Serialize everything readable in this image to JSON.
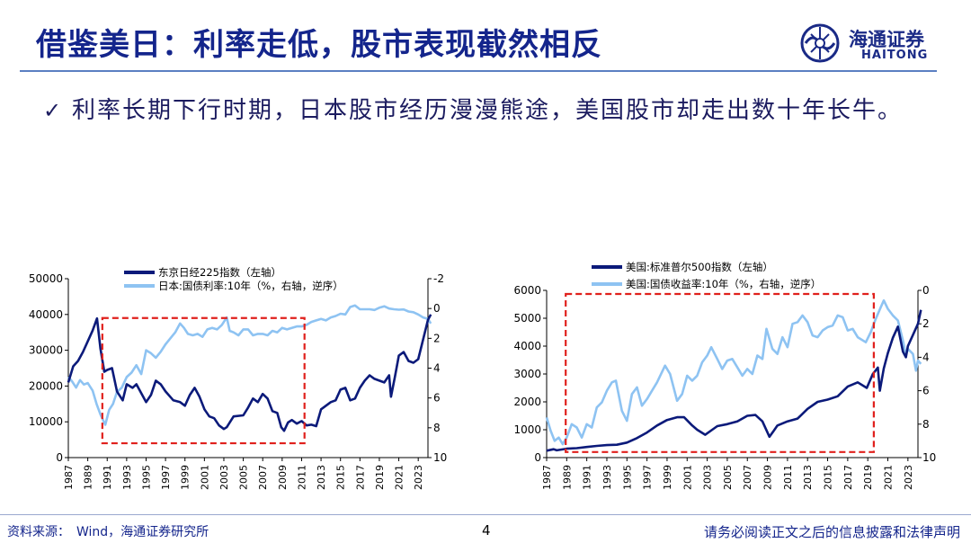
{
  "slide": {
    "title": "借鉴美日：利率走低，股市表现截然相反",
    "bullet": "利率长期下行时期，日本股市经历漫漫熊途，美国股市却走出数十年长牛。",
    "bullet_check": "✓",
    "logo_cn": "海通证券",
    "logo_en": "HAITONG",
    "source": "资料来源：　Wind，海通证券研究所",
    "page_number": "4",
    "disclaimer": "请务必阅读正文之后的信息披露和法律声明",
    "colors": {
      "title": "#14258c",
      "dark_series": "#0b1a7a",
      "light_series": "#8ec3f2",
      "highlight_box": "#e0201c"
    }
  },
  "chart_data": [
    {
      "id": "japan",
      "type": "line",
      "legend": [
        "东京日经225指数（左轴）",
        "日本:国债利率:10年（%，右轴，逆序）"
      ],
      "x_ticks": [
        "1987",
        "1989",
        "1991",
        "1993",
        "1995",
        "1997",
        "1999",
        "2001",
        "2003",
        "2005",
        "2007",
        "2009",
        "2011",
        "2013",
        "2015",
        "2017",
        "2019",
        "2021",
        "2023"
      ],
      "xlim": [
        1987,
        2024
      ],
      "left_axis": {
        "ticks": [
          "0",
          "10000",
          "20000",
          "30000",
          "40000",
          "50000"
        ],
        "range": [
          0,
          50000
        ]
      },
      "right_axis": {
        "ticks": [
          "-2",
          "0",
          "2",
          "4",
          "6",
          "8",
          "10"
        ],
        "range": [
          -2,
          10
        ],
        "inverted": true
      },
      "highlight_years": [
        1990.5,
        2011.3
      ],
      "series": [
        {
          "name": "东京日经225指数",
          "axis": "left",
          "x": [
            1987,
            1987.5,
            1988,
            1988.5,
            1989,
            1989.5,
            1989.95,
            1990.3,
            1990.7,
            1991,
            1991.5,
            1992,
            1992.6,
            1993,
            1993.6,
            1994,
            1995,
            1995.5,
            1996,
            1996.5,
            1997,
            1997.8,
            1998.5,
            1999,
            1999.5,
            2000,
            2000.5,
            2001,
            2001.5,
            2002,
            2002.5,
            2003,
            2003.3,
            2004,
            2005,
            2005.5,
            2006,
            2006.5,
            2007,
            2007.5,
            2008,
            2008.5,
            2008.9,
            2009.2,
            2009.6,
            2010,
            2010.5,
            2011,
            2011.5,
            2012,
            2012.5,
            2013,
            2013.5,
            2014,
            2014.5,
            2015,
            2015.5,
            2016,
            2016.5,
            2017,
            2017.5,
            2018,
            2018.5,
            2019,
            2019.5,
            2020,
            2020.2,
            2020.6,
            2021,
            2021.5,
            2022,
            2022.5,
            2023,
            2023.5,
            2024,
            2024.3
          ],
          "y": [
            21000,
            25500,
            27000,
            29500,
            32500,
            35500,
            38900,
            30500,
            24000,
            24500,
            25000,
            18500,
            16000,
            20500,
            19500,
            20500,
            15500,
            17500,
            21500,
            20500,
            18500,
            16000,
            15500,
            14500,
            17500,
            19500,
            17000,
            13500,
            11500,
            11000,
            9000,
            8000,
            8500,
            11500,
            11800,
            14000,
            16500,
            15500,
            17800,
            16500,
            13000,
            12500,
            8500,
            7500,
            9800,
            10500,
            9500,
            10200,
            9000,
            9200,
            8800,
            13500,
            14500,
            15500,
            16000,
            19000,
            19500,
            16000,
            16500,
            19500,
            21500,
            23000,
            22000,
            21500,
            21000,
            23000,
            17000,
            22500,
            28500,
            29500,
            27000,
            26500,
            27500,
            33000,
            38500,
            40000
          ]
        },
        {
          "name": "日本:国债利率:10年",
          "axis": "right",
          "x": [
            1987,
            1987.4,
            1987.8,
            1988.2,
            1988.6,
            1989,
            1989.5,
            1989.9,
            1990.3,
            1990.8,
            1991.2,
            1991.6,
            1992,
            1992.5,
            1993,
            1993.5,
            1994,
            1994.5,
            1995,
            1995.5,
            1996,
            1996.5,
            1997,
            1997.5,
            1998,
            1998.5,
            1998.9,
            1999.3,
            1999.8,
            2000.3,
            2000.8,
            2001.3,
            2001.8,
            2002.3,
            2002.8,
            2003.3,
            2003.6,
            2004,
            2004.5,
            2005,
            2005.5,
            2006,
            2006.5,
            2007,
            2007.5,
            2008,
            2008.5,
            2009,
            2009.5,
            2010,
            2010.5,
            2011,
            2011.5,
            2012,
            2012.5,
            2013,
            2013.5,
            2014,
            2014.5,
            2015,
            2015.5,
            2016,
            2016.5,
            2017,
            2017.5,
            2018,
            2018.5,
            2019,
            2019.5,
            2020,
            2020.5,
            2021,
            2021.5,
            2022,
            2022.5,
            2023,
            2023.5,
            2024,
            2024.3
          ],
          "y": [
            4.6,
            4.9,
            5.3,
            4.8,
            5.1,
            5.0,
            5.5,
            6.4,
            7.1,
            7.8,
            6.8,
            6.4,
            5.6,
            5.3,
            4.6,
            4.3,
            3.8,
            4.4,
            2.8,
            3.0,
            3.3,
            2.9,
            2.4,
            2.0,
            1.6,
            1.0,
            1.3,
            1.7,
            1.8,
            1.7,
            1.9,
            1.4,
            1.3,
            1.4,
            1.1,
            0.6,
            1.5,
            1.6,
            1.8,
            1.4,
            1.4,
            1.8,
            1.7,
            1.7,
            1.8,
            1.5,
            1.6,
            1.3,
            1.4,
            1.3,
            1.2,
            1.2,
            1.1,
            0.9,
            0.8,
            0.7,
            0.8,
            0.6,
            0.5,
            0.35,
            0.4,
            -0.1,
            -0.2,
            0.05,
            0.05,
            0.05,
            0.1,
            -0.05,
            -0.15,
            0.0,
            0.05,
            0.08,
            0.06,
            0.2,
            0.25,
            0.4,
            0.6,
            0.7,
            1.0
          ]
        }
      ]
    },
    {
      "id": "usa",
      "type": "line",
      "legend": [
        "美国:标准普尔500指数（左轴）",
        "美国:国债收益率:10年（%，右轴，逆序）"
      ],
      "x_ticks": [
        "1987",
        "1989",
        "1991",
        "1993",
        "1995",
        "1997",
        "1999",
        "2001",
        "2003",
        "2005",
        "2007",
        "2009",
        "2011",
        "2013",
        "2015",
        "2017",
        "2019",
        "2021",
        "2023"
      ],
      "xlim": [
        1987,
        2024
      ],
      "left_axis": {
        "ticks": [
          "0",
          "1000",
          "2000",
          "3000",
          "4000",
          "5000",
          "6000"
        ],
        "range": [
          0,
          6000
        ]
      },
      "right_axis": {
        "ticks": [
          "0",
          "2",
          "4",
          "6",
          "8",
          "10"
        ],
        "range": [
          0,
          10
        ],
        "inverted": true
      },
      "highlight_years": [
        1988.9,
        2019.6
      ],
      "series": [
        {
          "name": "美国:标准普尔500指数",
          "axis": "left",
          "x": [
            1987,
            1987.7,
            1988,
            1989,
            1990,
            1991,
            1992,
            1993,
            1994,
            1995,
            1996,
            1997,
            1998,
            1999,
            2000,
            2000.7,
            2001.5,
            2002,
            2002.8,
            2003.5,
            2004,
            2005,
            2006,
            2007,
            2007.8,
            2008.5,
            2009.2,
            2009.6,
            2010,
            2011,
            2012,
            2013,
            2014,
            2015,
            2016,
            2017,
            2018,
            2018.9,
            2019.5,
            2020,
            2020.2,
            2020.6,
            2021,
            2021.5,
            2022,
            2022.5,
            2022.8,
            2023,
            2023.5,
            2024,
            2024.3
          ],
          "y": [
            250,
            300,
            260,
            320,
            340,
            380,
            420,
            450,
            460,
            540,
            700,
            900,
            1150,
            1350,
            1450,
            1450,
            1150,
            1000,
            820,
            1000,
            1130,
            1200,
            1300,
            1500,
            1530,
            1300,
            750,
            950,
            1150,
            1300,
            1400,
            1750,
            2000,
            2080,
            2200,
            2550,
            2700,
            2500,
            3000,
            3230,
            2400,
            3200,
            3750,
            4300,
            4700,
            3800,
            3600,
            4000,
            4400,
            4800,
            5300
          ]
        },
        {
          "name": "美国:国债收益率:10年",
          "axis": "right",
          "x": [
            1987,
            1987.4,
            1987.8,
            1988.2,
            1988.6,
            1989,
            1989.5,
            1990,
            1990.5,
            1991,
            1991.5,
            1992,
            1992.5,
            1993,
            1993.5,
            1993.9,
            1994.5,
            1995,
            1995.5,
            1996,
            1996.5,
            1997,
            1997.5,
            1998,
            1998.8,
            1999.3,
            2000,
            2000.5,
            2001,
            2001.5,
            2002,
            2002.5,
            2003,
            2003.4,
            2004,
            2004.5,
            2005,
            2005.5,
            2006,
            2006.5,
            2007,
            2007.5,
            2008,
            2008.5,
            2008.9,
            2009.5,
            2010,
            2010.5,
            2011,
            2011.5,
            2012,
            2012.5,
            2013,
            2013.5,
            2014,
            2014.5,
            2015,
            2015.5,
            2016,
            2016.5,
            2017,
            2017.5,
            2018,
            2018.8,
            2019.3,
            2019.8,
            2020.3,
            2020.6,
            2021,
            2021.5,
            2022,
            2022.5,
            2022.8,
            2023,
            2023.5,
            2023.8,
            2024,
            2024.3
          ],
          "y": [
            7.6,
            8.4,
            9.0,
            8.8,
            9.2,
            8.8,
            8.0,
            8.2,
            8.8,
            8.0,
            8.2,
            7.0,
            6.7,
            6.0,
            5.5,
            5.4,
            7.2,
            7.8,
            6.2,
            5.8,
            6.9,
            6.5,
            6.0,
            5.5,
            4.5,
            5.0,
            6.6,
            6.2,
            5.1,
            5.4,
            5.1,
            4.3,
            3.9,
            3.4,
            4.1,
            4.7,
            4.2,
            4.1,
            4.6,
            5.1,
            4.7,
            5.0,
            3.9,
            4.1,
            2.3,
            3.5,
            3.8,
            2.8,
            3.4,
            2.0,
            1.9,
            1.5,
            1.9,
            2.7,
            2.8,
            2.4,
            2.2,
            2.1,
            1.5,
            1.6,
            2.4,
            2.3,
            2.8,
            3.1,
            2.5,
            1.7,
            1.0,
            0.6,
            1.1,
            1.5,
            1.8,
            3.0,
            3.9,
            3.5,
            3.8,
            4.8,
            4.2,
            4.4
          ]
        }
      ]
    }
  ]
}
